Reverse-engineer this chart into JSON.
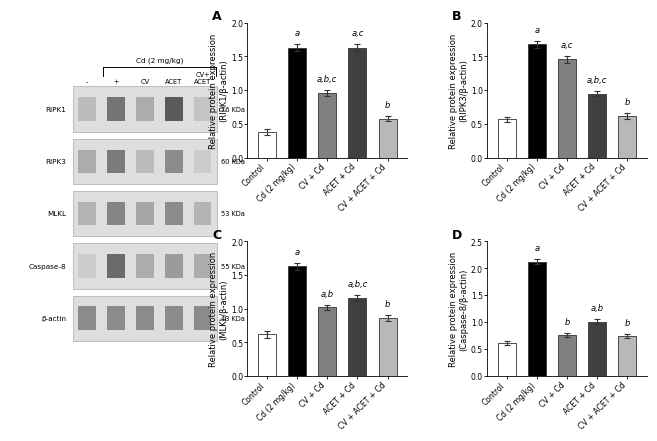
{
  "panels": {
    "A": {
      "ylabel": "Relative protein expression\n(RIPK1/β-actin)",
      "ylim": [
        0,
        2.0
      ],
      "yticks": [
        0.0,
        0.5,
        1.0,
        1.5,
        2.0
      ],
      "bars": [
        {
          "label": "Control",
          "value": 0.38,
          "err": 0.05,
          "color": "#ffffff",
          "sig": ""
        },
        {
          "label": "Cd (2 mg/kg)",
          "value": 1.63,
          "err": 0.05,
          "color": "#000000",
          "sig": "a"
        },
        {
          "label": "CV + Cd",
          "value": 0.96,
          "err": 0.04,
          "color": "#808080",
          "sig": "a,b,c"
        },
        {
          "label": "ACET + Cd",
          "value": 1.63,
          "err": 0.05,
          "color": "#404040",
          "sig": "a,c"
        },
        {
          "label": "CV + ACET + Cd",
          "value": 0.58,
          "err": 0.04,
          "color": "#b8b8b8",
          "sig": "b"
        }
      ]
    },
    "B": {
      "ylabel": "Relative protein expression\n(RIPK3/β-actin)",
      "ylim": [
        0,
        2.0
      ],
      "yticks": [
        0.0,
        0.5,
        1.0,
        1.5,
        2.0
      ],
      "bars": [
        {
          "label": "Control",
          "value": 0.57,
          "err": 0.04,
          "color": "#ffffff",
          "sig": ""
        },
        {
          "label": "Cd (2 mg/kg)",
          "value": 1.68,
          "err": 0.05,
          "color": "#000000",
          "sig": "a"
        },
        {
          "label": "CV + Cd",
          "value": 1.46,
          "err": 0.05,
          "color": "#808080",
          "sig": "a,c"
        },
        {
          "label": "ACET + Cd",
          "value": 0.95,
          "err": 0.04,
          "color": "#404040",
          "sig": "a,b,c"
        },
        {
          "label": "CV + ACET + Cd",
          "value": 0.62,
          "err": 0.04,
          "color": "#b8b8b8",
          "sig": "b"
        }
      ]
    },
    "C": {
      "ylabel": "Relative protein expression\n(MLKL/β-actin)",
      "ylim": [
        0,
        2.0
      ],
      "yticks": [
        0.0,
        0.5,
        1.0,
        1.5,
        2.0
      ],
      "bars": [
        {
          "label": "Control",
          "value": 0.62,
          "err": 0.05,
          "color": "#ffffff",
          "sig": ""
        },
        {
          "label": "Cd (2 mg/kg)",
          "value": 1.63,
          "err": 0.05,
          "color": "#000000",
          "sig": "a"
        },
        {
          "label": "CV + Cd",
          "value": 1.02,
          "err": 0.04,
          "color": "#808080",
          "sig": "a,b"
        },
        {
          "label": "ACET + Cd",
          "value": 1.16,
          "err": 0.04,
          "color": "#404040",
          "sig": "a,b,c"
        },
        {
          "label": "CV + ACET + Cd",
          "value": 0.86,
          "err": 0.04,
          "color": "#b8b8b8",
          "sig": "b"
        }
      ]
    },
    "D": {
      "ylabel": "Relative protein expression\n(Caspase-8/β-actin)",
      "ylim": [
        0,
        2.5
      ],
      "yticks": [
        0.0,
        0.5,
        1.0,
        1.5,
        2.0,
        2.5
      ],
      "bars": [
        {
          "label": "Control",
          "value": 0.62,
          "err": 0.04,
          "color": "#ffffff",
          "sig": ""
        },
        {
          "label": "Cd (2 mg/kg)",
          "value": 2.12,
          "err": 0.05,
          "color": "#000000",
          "sig": "a"
        },
        {
          "label": "CV + Cd",
          "value": 0.76,
          "err": 0.04,
          "color": "#808080",
          "sig": "b"
        },
        {
          "label": "ACET + Cd",
          "value": 1.01,
          "err": 0.05,
          "color": "#404040",
          "sig": "a,b"
        },
        {
          "label": "CV + ACET + Cd",
          "value": 0.74,
          "err": 0.04,
          "color": "#b8b8b8",
          "sig": "b"
        }
      ]
    }
  },
  "wb_panel": {
    "title": "Cd (2 mg/kg)",
    "col_labels": [
      "-",
      "+",
      "CV",
      "ACET",
      "CV+\nACET"
    ],
    "rows": [
      "RIPK1",
      "RIPK3",
      "MLKL",
      "Caspase-8",
      "β-actin"
    ],
    "kda": [
      "76 KDa",
      "60 KDa",
      "53 KDa",
      "55 KDa",
      "43 KDa"
    ],
    "band_intensities": {
      "RIPK1": [
        0.38,
        0.82,
        0.48,
        0.98,
        0.33
      ],
      "RIPK3": [
        0.48,
        0.78,
        0.38,
        0.68,
        0.28
      ],
      "MLKL": [
        0.43,
        0.72,
        0.52,
        0.68,
        0.43
      ],
      "Caspase-8": [
        0.28,
        0.88,
        0.48,
        0.58,
        0.48
      ],
      "β-actin": [
        0.68,
        0.68,
        0.68,
        0.68,
        0.68
      ]
    }
  },
  "bar_edge_color": "#333333",
  "bar_width": 0.6,
  "sig_fontsize": 6.0,
  "axis_label_fontsize": 6.0,
  "tick_fontsize": 5.5,
  "panel_label_fontsize": 9
}
